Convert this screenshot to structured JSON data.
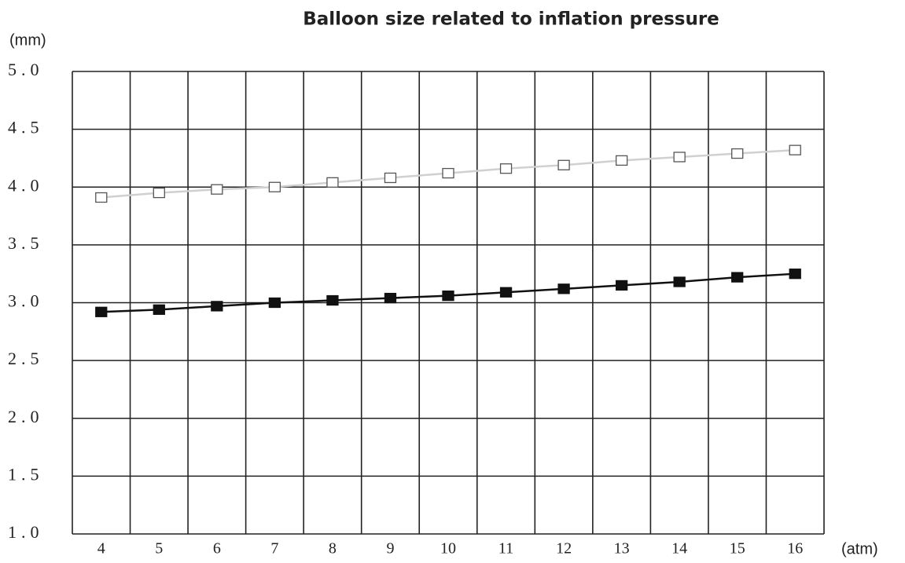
{
  "chart_data": {
    "type": "line",
    "title": "Balloon size related to inflation pressure",
    "y_label": "(mm)",
    "x_label": "(atm)",
    "categories": [
      "4",
      "5",
      "6",
      "7",
      "8",
      "9",
      "10",
      "11",
      "12",
      "13",
      "14",
      "15",
      "16"
    ],
    "series": [
      {
        "color": "#ffffff",
        "line_color": "#d0d0d0",
        "values": [
          3.91,
          3.95,
          3.98,
          4.0,
          4.04,
          4.08,
          4.12,
          4.16,
          4.19,
          4.23,
          4.26,
          4.29,
          4.32
        ]
      },
      {
        "color": "#111111",
        "line_color": "#111111",
        "values": [
          2.92,
          2.94,
          2.97,
          3.0,
          3.02,
          3.04,
          3.06,
          3.09,
          3.12,
          3.15,
          3.18,
          3.22,
          3.25
        ]
      }
    ],
    "ylim": [
      1,
      5
    ],
    "yticks": [
      {
        "value": 1,
        "label": "1.0"
      },
      {
        "value": 1.5,
        "label": "1.5"
      },
      {
        "value": 2,
        "label": "2.0"
      },
      {
        "value": 2.5,
        "label": "2.5"
      },
      {
        "value": 3,
        "label": "3.0"
      },
      {
        "value": 3.5,
        "label": "3.5"
      },
      {
        "value": 4,
        "label": "4.0"
      },
      {
        "value": 4.5,
        "label": "4.5"
      },
      {
        "value": 5,
        "label": "5.0"
      }
    ],
    "grid": true
  }
}
